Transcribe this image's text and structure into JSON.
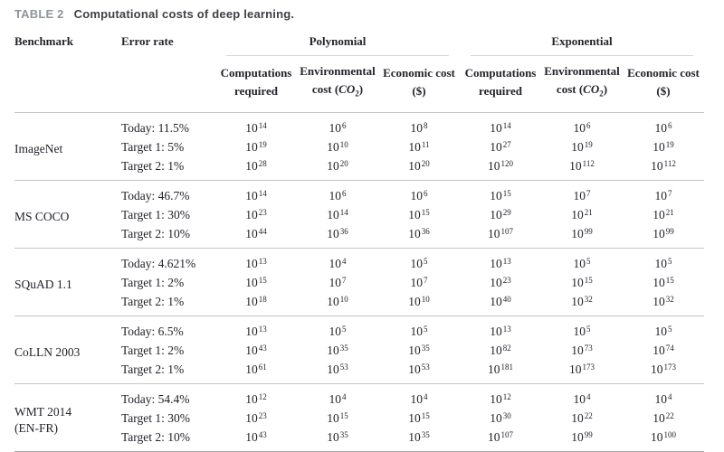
{
  "caption": {
    "label": "TABLE 2",
    "text": "Computational costs of deep learning."
  },
  "table": {
    "headers": {
      "benchmark": "Benchmark",
      "error_rate": "Error rate",
      "group_polynomial": "Polynomial",
      "group_exponential": "Exponential",
      "sub_columns": [
        {
          "line1": "Computations",
          "line2": "required"
        },
        {
          "line1": "Environmental",
          "line2": "cost (CO2)"
        },
        {
          "line1": "Economic cost",
          "line2": "($)"
        }
      ]
    },
    "groups": [
      {
        "benchmark": "ImageNet",
        "rows": [
          {
            "error_rate": "Today: 11.5%",
            "values": [
              "10^14",
              "10^6",
              "10^8",
              "10^14",
              "10^6",
              "10^6"
            ]
          },
          {
            "error_rate": "Target 1: 5%",
            "values": [
              "10^19",
              "10^10",
              "10^11",
              "10^27",
              "10^19",
              "10^19"
            ]
          },
          {
            "error_rate": "Target 2: 1%",
            "values": [
              "10^28",
              "10^20",
              "10^20",
              "10^120",
              "10^112",
              "10^112"
            ]
          }
        ]
      },
      {
        "benchmark": "MS COCO",
        "rows": [
          {
            "error_rate": "Today: 46.7%",
            "values": [
              "10^14",
              "10^6",
              "10^6",
              "10^15",
              "10^7",
              "10^7"
            ]
          },
          {
            "error_rate": "Target 1: 30%",
            "values": [
              "10^23",
              "10^14",
              "10^15",
              "10^29",
              "10^21",
              "10^21"
            ]
          },
          {
            "error_rate": "Target 2: 10%",
            "values": [
              "10^44",
              "10^36",
              "10^36",
              "10^107",
              "10^99",
              "10^99"
            ]
          }
        ]
      },
      {
        "benchmark": "SQuAD 1.1",
        "rows": [
          {
            "error_rate": "Today: 4.621%",
            "values": [
              "10^13",
              "10^4",
              "10^5",
              "10^13",
              "10^5",
              "10^5"
            ]
          },
          {
            "error_rate": "Target 1: 2%",
            "values": [
              "10^15",
              "10^7",
              "10^7",
              "10^23",
              "10^15",
              "10^15"
            ]
          },
          {
            "error_rate": "Target 2: 1%",
            "values": [
              "10^18",
              "10^10",
              "10^10",
              "10^40",
              "10^32",
              "10^32"
            ]
          }
        ]
      },
      {
        "benchmark": "CoLLN 2003",
        "rows": [
          {
            "error_rate": "Today: 6.5%",
            "values": [
              "10^13",
              "10^5",
              "10^5",
              "10^13",
              "10^5",
              "10^5"
            ]
          },
          {
            "error_rate": "Target 1: 2%",
            "values": [
              "10^43",
              "10^35",
              "10^35",
              "10^82",
              "10^73",
              "10^74"
            ]
          },
          {
            "error_rate": "Target 2: 1%",
            "values": [
              "10^61",
              "10^53",
              "10^53",
              "10^181",
              "10^173",
              "10^173"
            ]
          }
        ]
      },
      {
        "benchmark": "WMT 2014\n(EN-FR)",
        "rows": [
          {
            "error_rate": "Today: 54.4%",
            "values": [
              "10^12",
              "10^4",
              "10^4",
              "10^12",
              "10^4",
              "10^4"
            ]
          },
          {
            "error_rate": "Target 1: 30%",
            "values": [
              "10^23",
              "10^15",
              "10^15",
              "10^30",
              "10^22",
              "10^22"
            ]
          },
          {
            "error_rate": "Target 2: 10%",
            "values": [
              "10^43",
              "10^35",
              "10^35",
              "10^107",
              "10^99",
              "10^100"
            ]
          }
        ]
      }
    ]
  }
}
